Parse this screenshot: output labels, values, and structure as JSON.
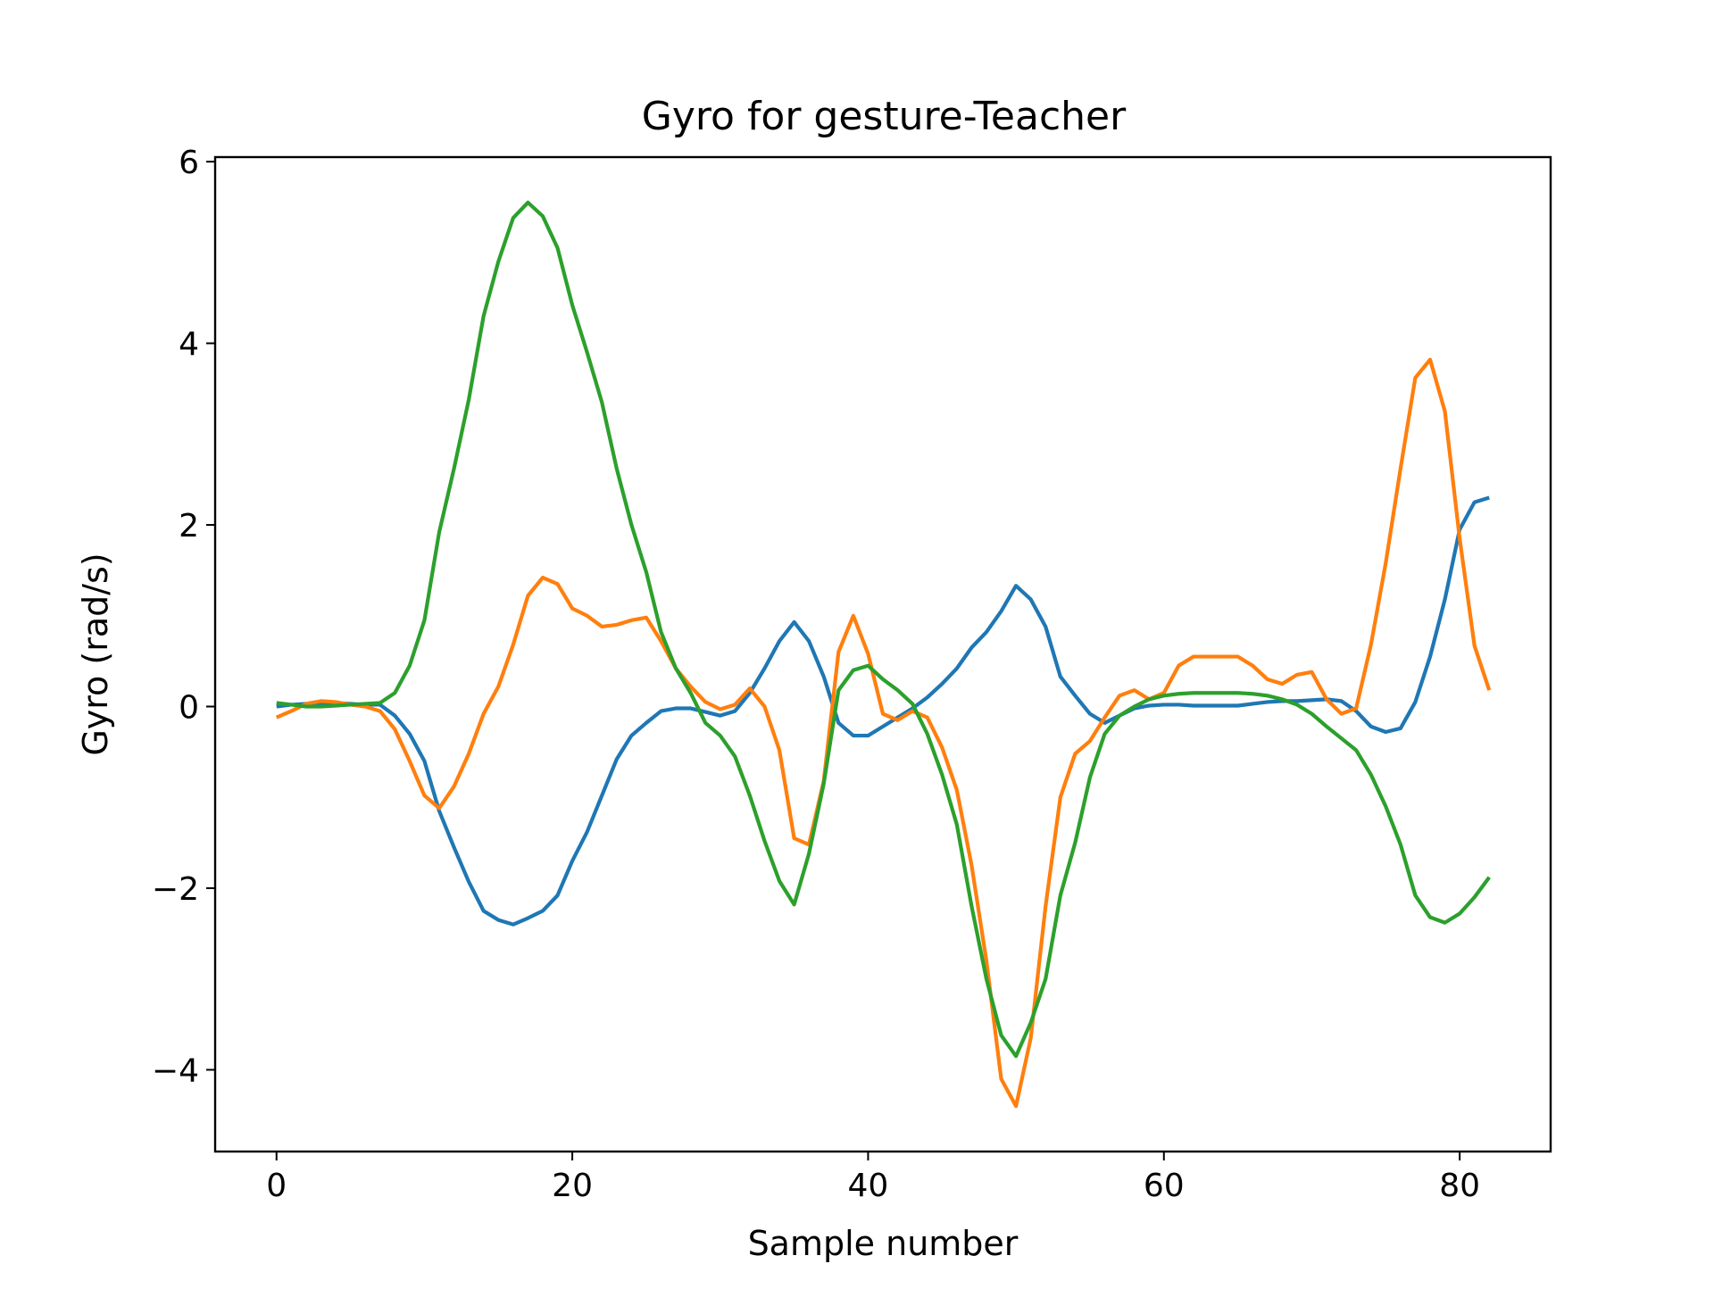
{
  "chart_data": {
    "type": "line",
    "title": "Gyro for gesture-Teacher",
    "xlabel": "Sample number",
    "ylabel": "Gyro  (rad/s)",
    "xlim": [
      -4.15,
      86.15
    ],
    "ylim": [
      -4.9,
      6.05
    ],
    "xticks": [
      0,
      20,
      40,
      60,
      80
    ],
    "yticks": [
      -4,
      -2,
      0,
      2,
      4,
      6
    ],
    "xtick_labels": [
      "0",
      "20",
      "40",
      "60",
      "80"
    ],
    "ytick_labels": [
      "−4",
      "−2",
      "0",
      "2",
      "4",
      "6"
    ],
    "grid": false,
    "legend": "none",
    "x_start": 0,
    "x_step": 1,
    "series": [
      {
        "color": "#1f77b4",
        "values": [
          0.0,
          0.02,
          0.03,
          0.04,
          0.04,
          0.03,
          0.02,
          0.02,
          -0.1,
          -0.3,
          -0.6,
          -1.15,
          -1.55,
          -1.93,
          -2.25,
          -2.35,
          -2.4,
          -2.33,
          -2.25,
          -2.08,
          -1.7,
          -1.38,
          -0.98,
          -0.58,
          -0.32,
          -0.18,
          -0.05,
          -0.02,
          -0.02,
          -0.06,
          -0.1,
          -0.05,
          0.15,
          0.42,
          0.72,
          0.93,
          0.72,
          0.33,
          -0.18,
          -0.32,
          -0.32,
          -0.22,
          -0.12,
          -0.02,
          0.1,
          0.25,
          0.42,
          0.65,
          0.82,
          1.05,
          1.33,
          1.18,
          0.88,
          0.33,
          0.12,
          -0.08,
          -0.18,
          -0.1,
          -0.02,
          0.01,
          0.02,
          0.02,
          0.01,
          0.01,
          0.01,
          0.01,
          0.03,
          0.05,
          0.06,
          0.06,
          0.07,
          0.08,
          0.06,
          -0.05,
          -0.22,
          -0.28,
          -0.24,
          0.05,
          0.55,
          1.18,
          1.95,
          2.25,
          2.3
        ]
      },
      {
        "color": "#ff7f0e",
        "values": [
          -0.12,
          -0.05,
          0.03,
          0.06,
          0.05,
          0.02,
          0.0,
          -0.05,
          -0.25,
          -0.6,
          -0.98,
          -1.12,
          -0.88,
          -0.52,
          -0.08,
          0.22,
          0.68,
          1.22,
          1.42,
          1.35,
          1.08,
          1.0,
          0.88,
          0.9,
          0.95,
          0.98,
          0.72,
          0.42,
          0.22,
          0.05,
          -0.03,
          0.02,
          0.2,
          0.0,
          -0.48,
          -1.45,
          -1.52,
          -0.82,
          0.6,
          1.0,
          0.58,
          -0.08,
          -0.15,
          -0.05,
          -0.12,
          -0.45,
          -0.92,
          -1.75,
          -2.8,
          -4.1,
          -4.4,
          -3.65,
          -2.2,
          -1.0,
          -0.52,
          -0.38,
          -0.12,
          0.12,
          0.18,
          0.08,
          0.15,
          0.45,
          0.55,
          0.55,
          0.55,
          0.55,
          0.45,
          0.3,
          0.25,
          0.35,
          0.38,
          0.08,
          -0.08,
          -0.02,
          0.68,
          1.58,
          2.62,
          3.62,
          3.82,
          3.25,
          1.85,
          0.67,
          0.18
        ]
      },
      {
        "color": "#2ca02c",
        "values": [
          0.04,
          0.02,
          0.0,
          0.0,
          0.01,
          0.02,
          0.03,
          0.04,
          0.15,
          0.45,
          0.95,
          1.92,
          2.62,
          3.38,
          4.3,
          4.9,
          5.38,
          5.55,
          5.4,
          5.05,
          4.42,
          3.9,
          3.35,
          2.62,
          2.0,
          1.48,
          0.82,
          0.42,
          0.15,
          -0.18,
          -0.32,
          -0.55,
          -0.98,
          -1.48,
          -1.92,
          -2.18,
          -1.62,
          -0.85,
          0.18,
          0.4,
          0.45,
          0.3,
          0.18,
          0.03,
          -0.3,
          -0.75,
          -1.3,
          -2.2,
          -3.0,
          -3.62,
          -3.85,
          -3.48,
          -3.0,
          -2.08,
          -1.5,
          -0.78,
          -0.3,
          -0.1,
          0.0,
          0.08,
          0.12,
          0.14,
          0.15,
          0.15,
          0.15,
          0.15,
          0.14,
          0.12,
          0.08,
          0.02,
          -0.08,
          -0.22,
          -0.35,
          -0.48,
          -0.75,
          -1.1,
          -1.52,
          -2.08,
          -2.32,
          -2.38,
          -2.28,
          -2.1,
          -1.88
        ]
      }
    ]
  }
}
